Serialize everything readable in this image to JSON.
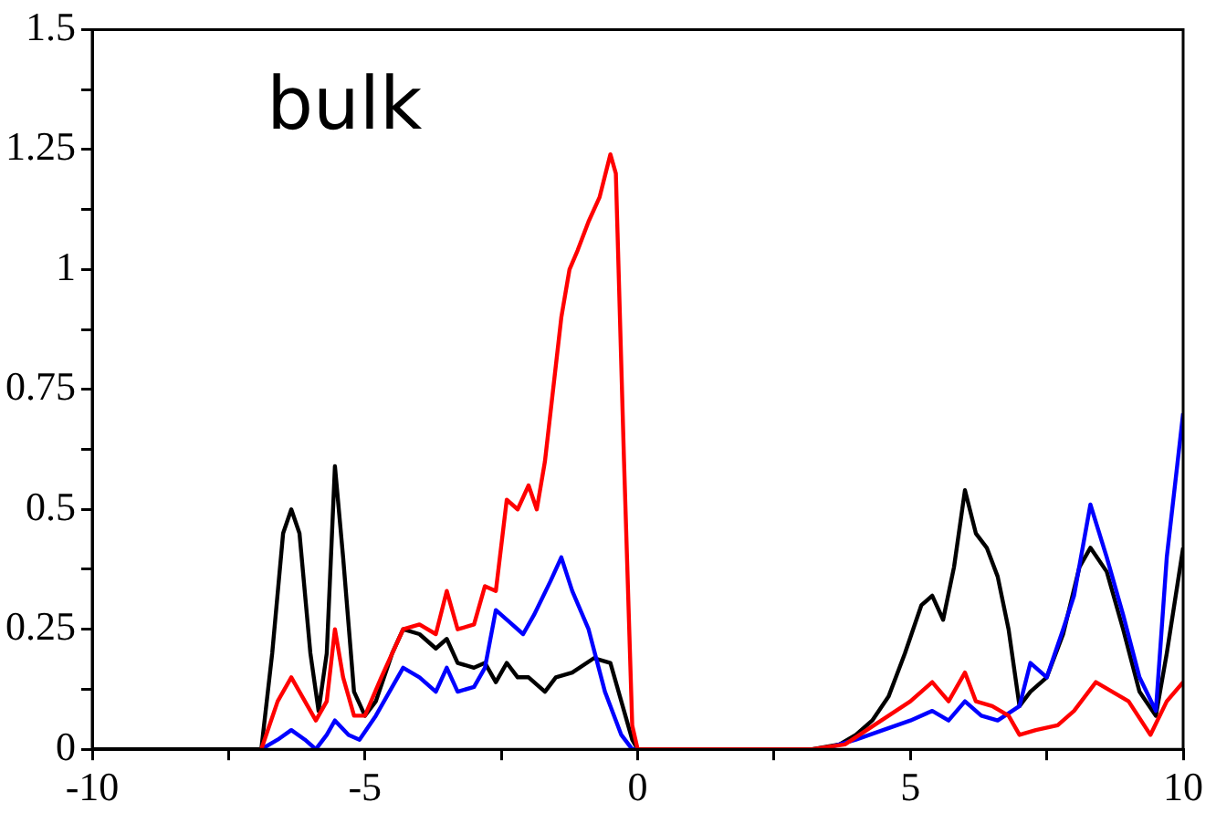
{
  "chart_data": {
    "type": "line",
    "annotations": [
      "bulk"
    ],
    "xlim": [
      -10,
      10
    ],
    "ylim": [
      0,
      1.5
    ],
    "xticks": [
      -10,
      {
        "value": -7.5,
        "label": null
      },
      -5,
      {
        "value": -2.5,
        "label": null
      },
      0,
      {
        "value": 2.5,
        "label": null
      },
      5,
      {
        "value": 7.5,
        "label": null
      },
      10
    ],
    "yticks": [
      0,
      {
        "value": 0.125,
        "label": null
      },
      0.25,
      {
        "value": 0.375,
        "label": null
      },
      0.5,
      {
        "value": 0.625,
        "label": null
      },
      0.75,
      {
        "value": 0.875,
        "label": null
      },
      1,
      {
        "value": 1.125,
        "label": null
      },
      1.25,
      {
        "value": 1.375,
        "label": null
      },
      1.5
    ],
    "grid": false,
    "legend": false,
    "marker": "none",
    "line_style": "solid",
    "series": [
      {
        "color": "#ff0000",
        "x": [
          -6.9,
          -6.6,
          -6.35,
          -6.1,
          -5.9,
          -5.7,
          -5.55,
          -5.4,
          -5.2,
          -5.0,
          -4.7,
          -4.3,
          -4.0,
          -3.7,
          -3.5,
          -3.3,
          -3.0,
          -2.8,
          -2.6,
          -2.4,
          -2.2,
          -2.0,
          -1.85,
          -1.7,
          -1.4,
          -1.25,
          -1.1,
          -0.9,
          -0.7,
          -0.5,
          -0.4,
          -0.25,
          -0.1,
          0,
          3.2,
          3.8,
          4.2,
          4.6,
          5.0,
          5.4,
          5.7,
          6.0,
          6.2,
          6.5,
          6.8,
          7.0,
          7.3,
          7.7,
          8.0,
          8.4,
          8.7,
          9.0,
          9.4,
          9.7,
          10
        ],
        "values": [
          0,
          0.1,
          0.15,
          0.1,
          0.06,
          0.1,
          0.25,
          0.15,
          0.07,
          0.07,
          0.15,
          0.25,
          0.26,
          0.24,
          0.33,
          0.25,
          0.26,
          0.34,
          0.33,
          0.52,
          0.5,
          0.55,
          0.5,
          0.6,
          0.9,
          1.0,
          1.04,
          1.1,
          1.15,
          1.24,
          1.2,
          0.6,
          0.05,
          0,
          0,
          0.01,
          0.04,
          0.07,
          0.1,
          0.14,
          0.1,
          0.16,
          0.1,
          0.09,
          0.07,
          0.03,
          0.04,
          0.05,
          0.08,
          0.14,
          0.12,
          0.1,
          0.03,
          0.1,
          0.14
        ]
      },
      {
        "color": "#0000ff",
        "x": [
          -6.9,
          -6.6,
          -6.35,
          -6.1,
          -5.9,
          -5.7,
          -5.55,
          -5.3,
          -5.1,
          -4.8,
          -4.5,
          -4.3,
          -4.0,
          -3.7,
          -3.5,
          -3.3,
          -3.0,
          -2.8,
          -2.6,
          -2.4,
          -2.1,
          -1.9,
          -1.6,
          -1.4,
          -1.2,
          -0.9,
          -0.6,
          -0.3,
          -0.1,
          0,
          3.4,
          4.0,
          4.5,
          5.0,
          5.4,
          5.7,
          6.0,
          6.3,
          6.6,
          7.0,
          7.2,
          7.5,
          7.8,
          8.0,
          8.3,
          8.6,
          8.9,
          9.2,
          9.5,
          9.7,
          10
        ],
        "values": [
          0,
          0.02,
          0.04,
          0.02,
          0,
          0.03,
          0.06,
          0.03,
          0.02,
          0.07,
          0.13,
          0.17,
          0.15,
          0.12,
          0.17,
          0.12,
          0.13,
          0.17,
          0.29,
          0.27,
          0.24,
          0.28,
          0.35,
          0.4,
          0.33,
          0.25,
          0.12,
          0.03,
          0,
          0,
          0,
          0.02,
          0.04,
          0.06,
          0.08,
          0.06,
          0.1,
          0.07,
          0.06,
          0.09,
          0.18,
          0.15,
          0.25,
          0.32,
          0.51,
          0.4,
          0.28,
          0.15,
          0.08,
          0.4,
          0.7
        ]
      },
      {
        "color": "#000000",
        "x": [
          -10,
          -6.9,
          -6.7,
          -6.5,
          -6.35,
          -6.2,
          -6.0,
          -5.85,
          -5.7,
          -5.55,
          -5.4,
          -5.2,
          -5.0,
          -4.8,
          -4.5,
          -4.3,
          -4.0,
          -3.7,
          -3.5,
          -3.3,
          -3.0,
          -2.8,
          -2.6,
          -2.4,
          -2.2,
          -2.0,
          -1.7,
          -1.5,
          -1.2,
          -0.8,
          -0.5,
          -0.3,
          -0.1,
          0,
          3.2,
          3.7,
          4.0,
          4.3,
          4.6,
          4.9,
          5.2,
          5.4,
          5.6,
          5.8,
          6.0,
          6.2,
          6.4,
          6.6,
          6.8,
          7.0,
          7.2,
          7.5,
          7.8,
          8.1,
          8.3,
          8.6,
          8.9,
          9.2,
          9.5,
          9.7,
          10
        ],
        "values": [
          0,
          0,
          0.2,
          0.45,
          0.5,
          0.45,
          0.2,
          0.08,
          0.2,
          0.59,
          0.4,
          0.12,
          0.07,
          0.1,
          0.2,
          0.25,
          0.24,
          0.21,
          0.23,
          0.18,
          0.17,
          0.18,
          0.14,
          0.18,
          0.15,
          0.15,
          0.12,
          0.15,
          0.16,
          0.19,
          0.18,
          0.1,
          0.02,
          0,
          0,
          0.01,
          0.03,
          0.06,
          0.11,
          0.2,
          0.3,
          0.32,
          0.27,
          0.38,
          0.54,
          0.45,
          0.42,
          0.36,
          0.25,
          0.09,
          0.12,
          0.15,
          0.24,
          0.38,
          0.42,
          0.37,
          0.25,
          0.12,
          0.07,
          0.2,
          0.42
        ]
      }
    ]
  }
}
